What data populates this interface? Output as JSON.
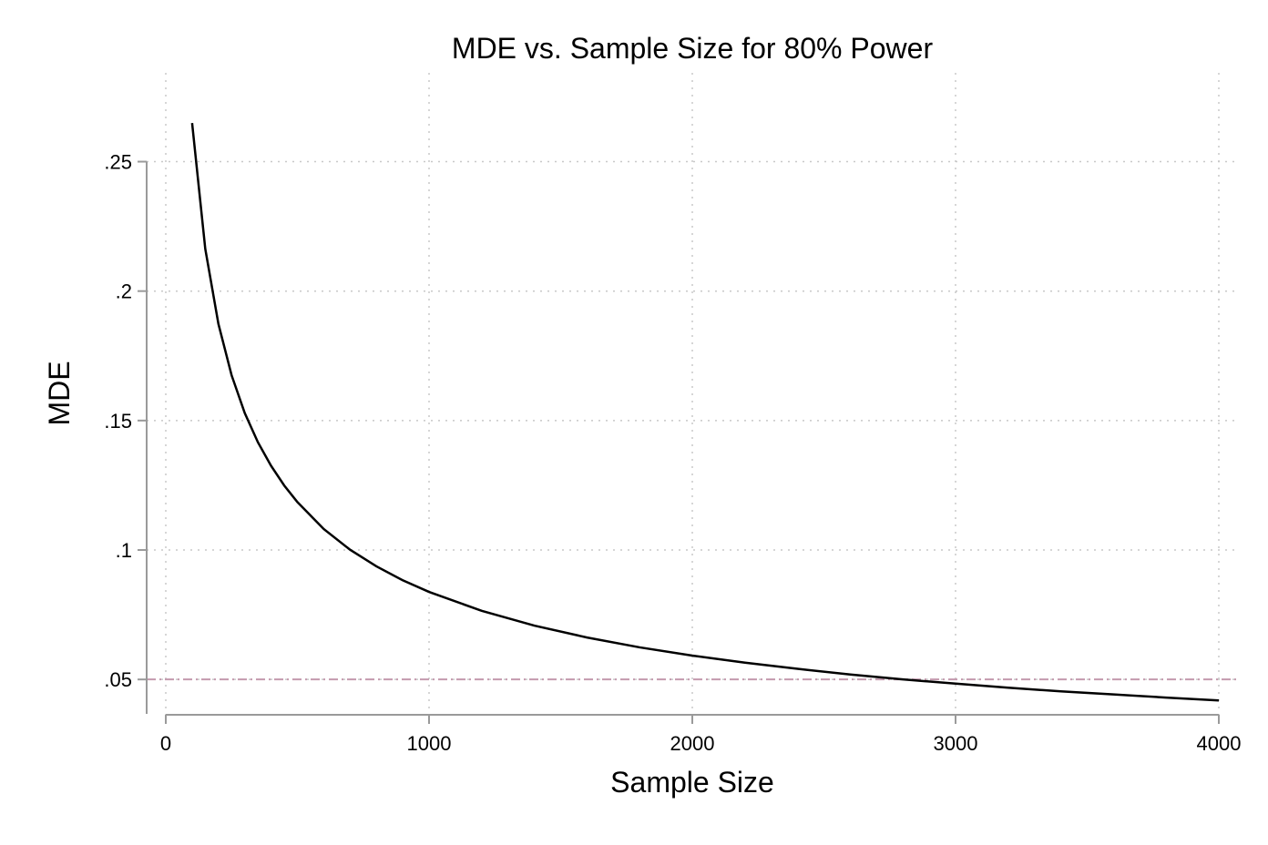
{
  "chart_data": {
    "type": "line",
    "title": "MDE vs. Sample Size for 80% Power",
    "xlabel": "Sample Size",
    "ylabel": "MDE",
    "xlim": [
      0,
      4000
    ],
    "ylim": [
      0.0367,
      0.2843
    ],
    "x_ticks": [
      {
        "value": 0,
        "label": "0"
      },
      {
        "value": 1000,
        "label": "1000"
      },
      {
        "value": 2000,
        "label": "2000"
      },
      {
        "value": 3000,
        "label": "3000"
      },
      {
        "value": 4000,
        "label": "4000"
      }
    ],
    "y_ticks": [
      {
        "value": 0.05,
        "label": ".05"
      },
      {
        "value": 0.1,
        "label": ".1"
      },
      {
        "value": 0.15,
        "label": ".15"
      },
      {
        "value": 0.2,
        "label": ".2"
      },
      {
        "value": 0.25,
        "label": ".25"
      }
    ],
    "grid": true,
    "series": [
      {
        "x": [
          100,
          150,
          200,
          250,
          300,
          350,
          400,
          450,
          500,
          600,
          700,
          800,
          900,
          1000,
          1200,
          1400,
          1600,
          1800,
          2000,
          2200,
          2400,
          2600,
          2800,
          3000,
          3200,
          3400,
          3600,
          3800,
          4000
        ],
        "values": [
          0.2649,
          0.2163,
          0.1873,
          0.1675,
          0.1529,
          0.1416,
          0.1325,
          0.1249,
          0.1185,
          0.1081,
          0.1001,
          0.0937,
          0.0883,
          0.0838,
          0.0765,
          0.0708,
          0.0662,
          0.0624,
          0.0592,
          0.0565,
          0.0541,
          0.0519,
          0.05,
          0.0484,
          0.0468,
          0.0454,
          0.0442,
          0.043,
          0.0419
        ],
        "color": "#000000"
      }
    ],
    "reference_lines": [
      {
        "axis": "y",
        "value": 0.05,
        "style": "dash-dot",
        "color": "#c49aae"
      }
    ]
  }
}
